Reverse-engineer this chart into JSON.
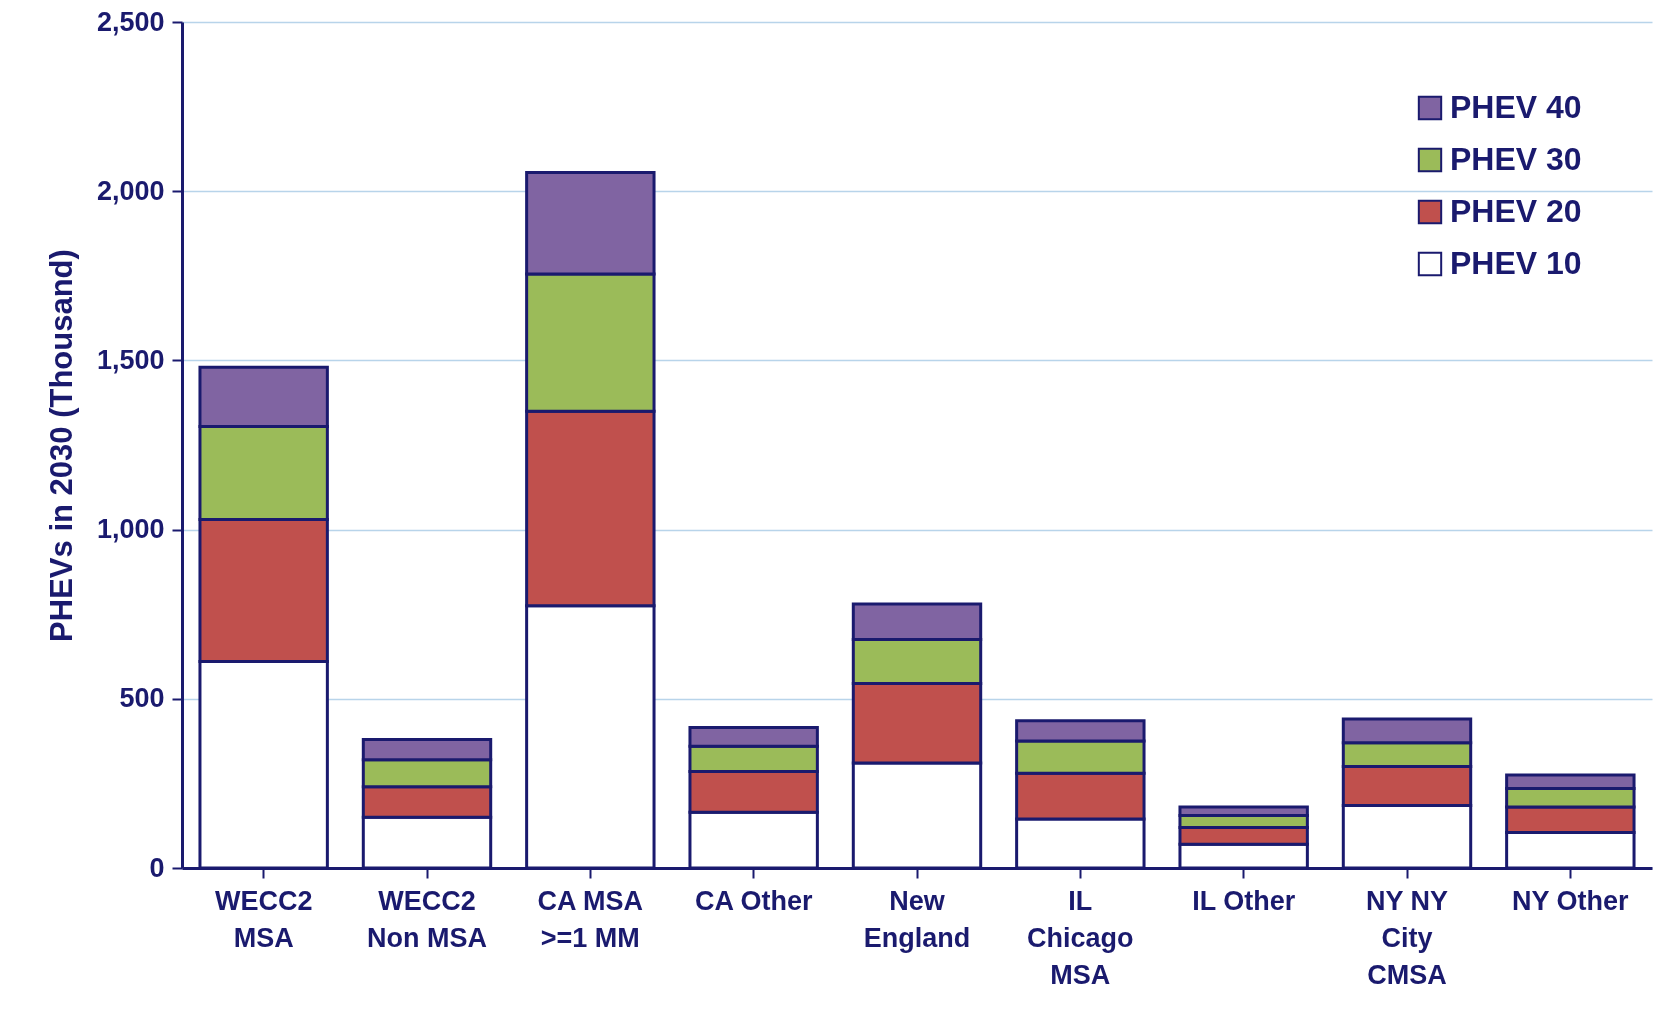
{
  "chart_data": {
    "type": "bar",
    "stacked": true,
    "ylabel": "PHEVs  in 2030 (Thousand)",
    "categories": [
      "WECC2 MSA",
      "WECC2 Non MSA",
      "CA MSA >=1 MM",
      "CA Other",
      "New England",
      "IL Chicago MSA",
      "IL Other",
      "NY NY City CMSA",
      "NY Other"
    ],
    "series": [
      {
        "name": "PHEV 10",
        "color": "#ffffff",
        "values": [
          610,
          150,
          775,
          165,
          310,
          145,
          70,
          185,
          105
        ]
      },
      {
        "name": "PHEV 20",
        "color": "#c0504d",
        "values": [
          420,
          90,
          575,
          120,
          235,
          135,
          50,
          115,
          75
        ]
      },
      {
        "name": "PHEV 30",
        "color": "#9bbb59",
        "values": [
          275,
          80,
          405,
          75,
          130,
          95,
          35,
          70,
          55
        ]
      },
      {
        "name": "PHEV 40",
        "color": "#8064a2",
        "values": [
          175,
          60,
          300,
          55,
          105,
          60,
          25,
          70,
          40
        ]
      }
    ],
    "ylim": [
      0,
      2500
    ],
    "yticks": [
      {
        "value": 0,
        "label": "0"
      },
      {
        "value": 500,
        "label": "500"
      },
      {
        "value": 1000,
        "label": "1,000"
      },
      {
        "value": 1500,
        "label": "1,500"
      },
      {
        "value": 2000,
        "label": "2,000"
      },
      {
        "value": 2500,
        "label": "2,500"
      }
    ],
    "grid": "y",
    "legend": "top right"
  }
}
